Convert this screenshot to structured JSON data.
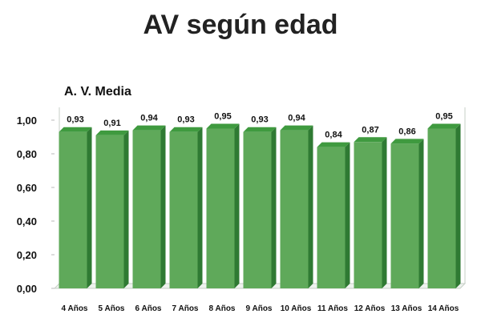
{
  "chart_data": {
    "type": "bar",
    "title": "AV según edad",
    "ylabel": "A. V. Media",
    "xlabel": "",
    "categories": [
      "4 Años",
      "5 Años",
      "6 Años",
      "7 Años",
      "8 Años",
      "9 Años",
      "10 Años",
      "11 Años",
      "12 Años",
      "13 Años",
      "14 Años"
    ],
    "values": [
      0.93,
      0.91,
      0.94,
      0.93,
      0.95,
      0.93,
      0.94,
      0.84,
      0.87,
      0.86,
      0.95
    ],
    "value_labels": [
      "0,93",
      "0,91",
      "0,94",
      "0,93",
      "0,95",
      "0,93",
      "0,94",
      "0,84",
      "0,87",
      "0,86",
      "0,95"
    ],
    "ylim": [
      0,
      1.0
    ],
    "yticks": [
      0,
      0.2,
      0.4,
      0.6,
      0.8,
      1.0
    ],
    "ytick_labels": [
      "0,00",
      "0,20",
      "0,40",
      "0,60",
      "0,80",
      "1,00"
    ],
    "grid": false,
    "legend": "none",
    "colors": {
      "bar_front": "#5fa95a",
      "bar_side": "#2f7a33",
      "bar_top": "#3f9a3f"
    }
  }
}
